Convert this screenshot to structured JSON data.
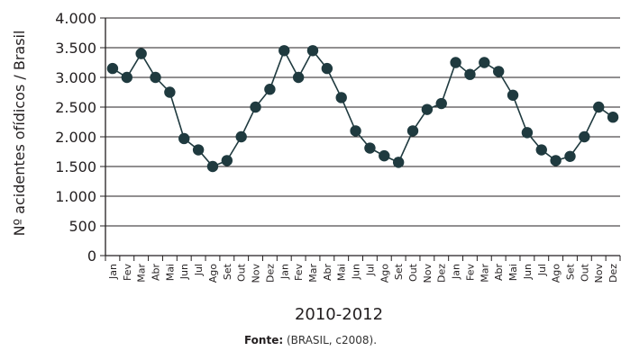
{
  "chart_data": {
    "type": "line",
    "xlabel": "2010-2012",
    "ylabel": "Nº acidentes ofídicos / Brasil",
    "ylim": [
      0,
      4000
    ],
    "yticks": [
      0,
      500,
      1000,
      1500,
      2000,
      2500,
      3000,
      3500,
      4000
    ],
    "ytick_labels": [
      "0",
      "500",
      "1.000",
      "1.500",
      "2.000",
      "2.500",
      "3.000",
      "3.500",
      "4.000"
    ],
    "grid": "horizontal",
    "categories": [
      "Jan",
      "Fev",
      "Mar",
      "Abr",
      "Mai",
      "Jun",
      "Jul",
      "Ago",
      "Set",
      "Out",
      "Nov",
      "Dez",
      "Jan",
      "Fev",
      "Mar",
      "Abr",
      "Mai",
      "Jun",
      "Jul",
      "Ago",
      "Set",
      "Out",
      "Nov",
      "Dez",
      "Jan",
      "Fev",
      "Mar",
      "Abr",
      "Mai",
      "Jun",
      "Jul",
      "Ago",
      "Set",
      "Out",
      "Nov",
      "Dez"
    ],
    "series": [
      {
        "name": "",
        "color": "#1f3a3f",
        "values": [
          3150,
          3000,
          3400,
          3000,
          2750,
          1970,
          1780,
          1500,
          1600,
          2000,
          2500,
          2800,
          3450,
          3000,
          3450,
          3150,
          2660,
          2100,
          1810,
          1680,
          1570,
          2100,
          2460,
          2560,
          3250,
          3050,
          3250,
          3100,
          2700,
          2070,
          1780,
          1600,
          1670,
          2000,
          2500,
          2330
        ]
      }
    ]
  },
  "source": {
    "label": "Fonte:",
    "text": "(BRASIL, c2008)."
  }
}
